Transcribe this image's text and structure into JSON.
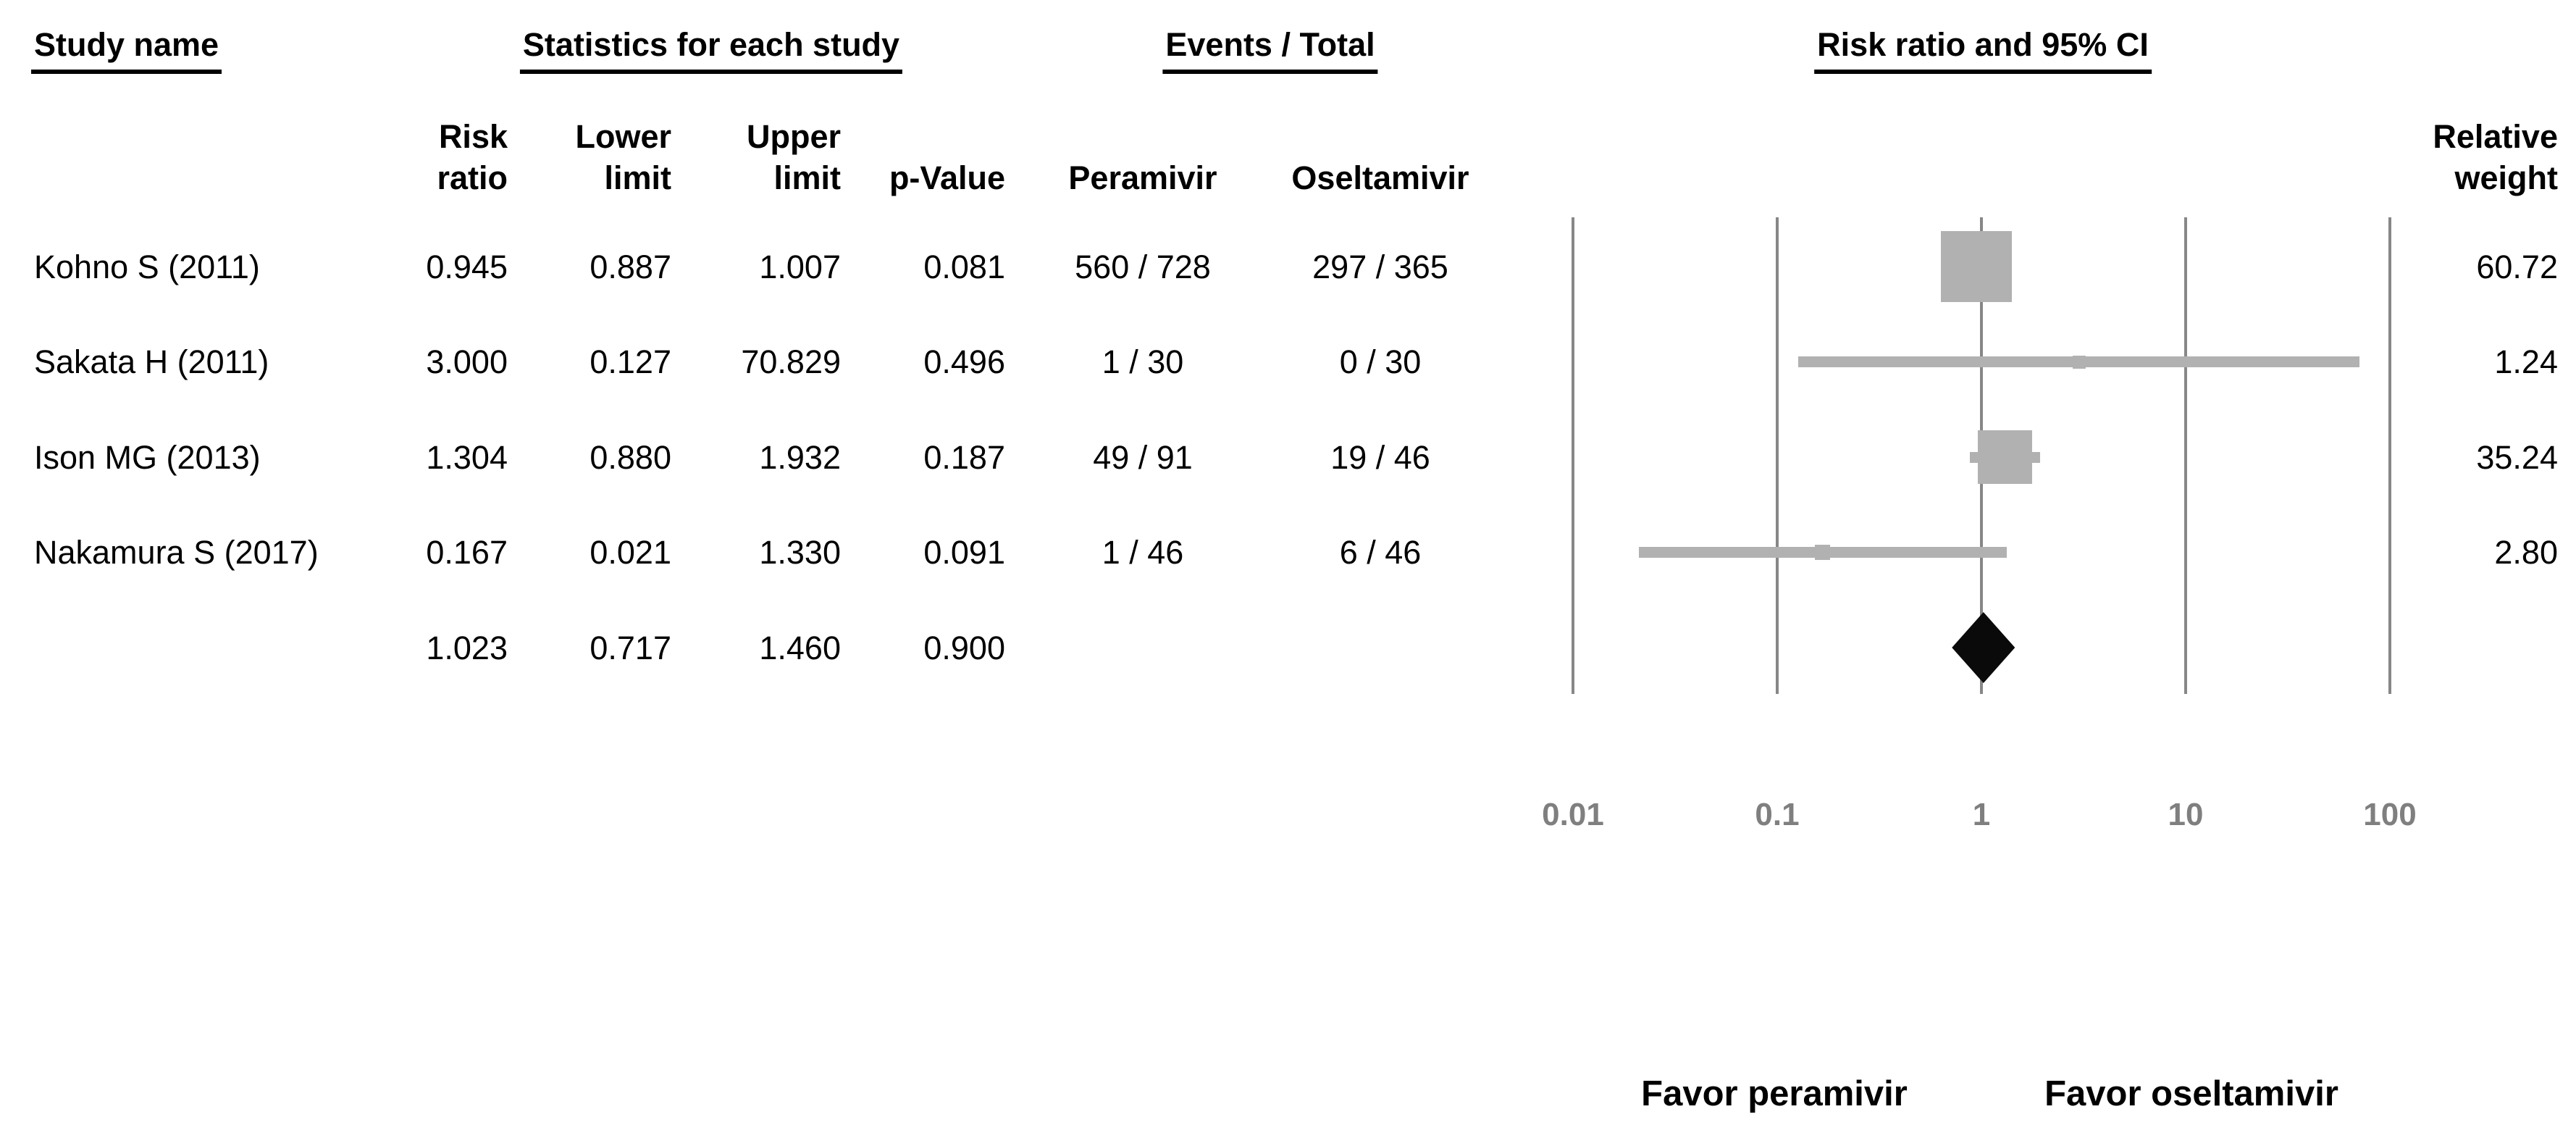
{
  "header": {
    "group": {
      "study": "Study name",
      "statistics": "Statistics for each study",
      "events": "Events / Total",
      "risk_ci": "Risk ratio and 95% CI"
    },
    "cols": {
      "risk_ratio": "Risk\nratio",
      "lower_limit": "Lower\nlimit",
      "upper_limit": "Upper\nlimit",
      "p_value": "p-Value",
      "peramivir": "Peramivir",
      "oseltamivir": "Oseltamivir",
      "relative_weight": "Relative\nweight"
    }
  },
  "table": {
    "rows": [
      {
        "study": "Kohno S (2011)",
        "rr": "0.945",
        "lower": "0.887",
        "upper": "1.007",
        "p": "0.081",
        "pera": "560 / 728",
        "osel": "297 / 365",
        "weight": "60.72"
      },
      {
        "study": "Sakata H (2011)",
        "rr": "3.000",
        "lower": "0.127",
        "upper": "70.829",
        "p": "0.496",
        "pera": "1 / 30",
        "osel": "0 / 30",
        "weight": "1.24"
      },
      {
        "study": "Ison MG (2013)",
        "rr": "1.304",
        "lower": "0.880",
        "upper": "1.932",
        "p": "0.187",
        "pera": "49 / 91",
        "osel": "19 / 46",
        "weight": "35.24"
      },
      {
        "study": "Nakamura S (2017)",
        "rr": "0.167",
        "lower": "0.021",
        "upper": "1.330",
        "p": "0.091",
        "pera": "1 / 46",
        "osel": "6 / 46",
        "weight": "2.80"
      }
    ],
    "summary_row": {
      "rr": "1.023",
      "lower": "0.717",
      "upper": "1.460",
      "p": "0.900"
    }
  },
  "axis": {
    "tick_labels": [
      "0.01",
      "0.1",
      "1",
      "10",
      "100"
    ]
  },
  "footer": {
    "favor_left": "Favor peramivir",
    "favor_right": "Favor oseltamivir"
  },
  "colors": {
    "marker_gray": "#b1b1b1",
    "line_gray": "#878787",
    "tick_gray": "#7f7f7f",
    "diamond_black": "#0a0a0a"
  },
  "chart_data": {
    "type": "scatter",
    "variant": "forest-plot",
    "title": "Risk ratio and 95% CI",
    "x_scale": "log10",
    "x_range": [
      0.01,
      100
    ],
    "x_ticks": [
      0.01,
      0.1,
      1,
      10,
      100
    ],
    "grid": "vertical-lines-at-ticks",
    "studies": [
      {
        "label": "Kohno S (2011)",
        "risk_ratio": 0.945,
        "lower": 0.887,
        "upper": 1.007,
        "p_value": 0.081,
        "events_peramivir": "560 / 728",
        "events_oseltamivir": "297 / 365",
        "relative_weight": 60.72
      },
      {
        "label": "Sakata H (2011)",
        "risk_ratio": 3.0,
        "lower": 0.127,
        "upper": 70.829,
        "p_value": 0.496,
        "events_peramivir": "1 / 30",
        "events_oseltamivir": "0 / 30",
        "relative_weight": 1.24
      },
      {
        "label": "Ison MG (2013)",
        "risk_ratio": 1.304,
        "lower": 0.88,
        "upper": 1.932,
        "p_value": 0.187,
        "events_peramivir": "49 / 91",
        "events_oseltamivir": "19 / 46",
        "relative_weight": 35.24
      },
      {
        "label": "Nakamura S (2017)",
        "risk_ratio": 0.167,
        "lower": 0.021,
        "upper": 1.33,
        "p_value": 0.091,
        "events_peramivir": "1 / 46",
        "events_oseltamivir": "6 / 46",
        "relative_weight": 2.8
      }
    ],
    "summary": {
      "risk_ratio": 1.023,
      "lower": 0.717,
      "upper": 1.46,
      "p_value": 0.9,
      "marker": "black-diamond"
    },
    "annotations": {
      "left_of_1": "Favor peramivir",
      "right_of_1": "Favor oseltamivir"
    }
  }
}
